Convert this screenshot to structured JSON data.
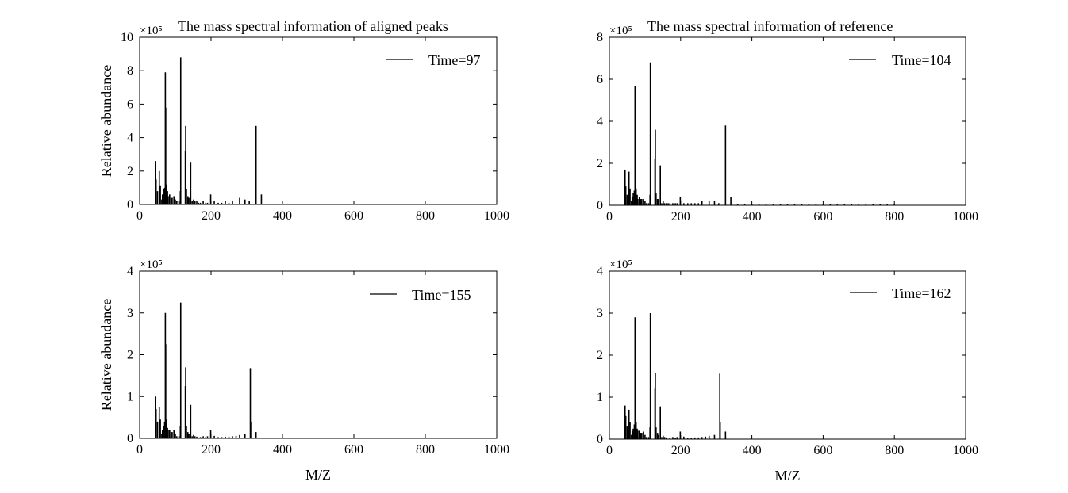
{
  "chart_data": [
    {
      "type": "bar",
      "title": "The mass spectral information of aligned peaks",
      "xlabel": "",
      "ylabel": "Relative abundance",
      "exponent_label": "×10⁵",
      "xlim": [
        0,
        1000
      ],
      "ylim": [
        0,
        10
      ],
      "xticks": [
        "0",
        "200",
        "400",
        "600",
        "800",
        "1000"
      ],
      "yticks": [
        "0",
        "2",
        "4",
        "6",
        "8",
        "10"
      ],
      "legend": "Time=97",
      "legend_position": "top-right",
      "x": [
        44,
        46,
        50,
        55,
        58,
        62,
        64,
        67,
        70,
        72,
        73,
        75,
        78,
        80,
        84,
        88,
        91,
        96,
        100,
        104,
        110,
        114,
        115,
        128,
        129,
        131,
        135,
        138,
        143,
        147,
        151,
        155,
        160,
        165,
        170,
        178,
        185,
        190,
        199,
        209,
        220,
        230,
        240,
        250,
        260,
        280,
        295,
        307,
        326,
        341
      ],
      "values": [
        2.6,
        1.5,
        0.8,
        2.0,
        1.1,
        0.3,
        0.6,
        0.9,
        1.0,
        7.9,
        5.8,
        1.2,
        0.8,
        0.5,
        0.6,
        0.4,
        0.4,
        0.5,
        0.3,
        0.2,
        0.2,
        0.8,
        8.8,
        3.2,
        4.7,
        0.9,
        0.5,
        0.4,
        2.5,
        0.2,
        0.3,
        0.2,
        0.2,
        0.1,
        0.1,
        0.2,
        0.1,
        0.1,
        0.6,
        0.2,
        0.1,
        0.1,
        0.2,
        0.1,
        0.2,
        0.4,
        0.3,
        0.2,
        4.7,
        0.6
      ]
    },
    {
      "type": "bar",
      "title": "The mass spectral information of reference",
      "xlabel": "",
      "ylabel": "",
      "exponent_label": "×10⁵",
      "xlim": [
        0,
        1000
      ],
      "ylim": [
        0,
        8
      ],
      "xticks": [
        "0",
        "200",
        "400",
        "600",
        "800",
        "1000"
      ],
      "yticks": [
        "0",
        "2",
        "4",
        "6",
        "8"
      ],
      "legend": "Time=104",
      "legend_position": "top-right",
      "x": [
        44,
        46,
        50,
        55,
        58,
        62,
        64,
        67,
        70,
        72,
        73,
        75,
        78,
        80,
        84,
        88,
        91,
        96,
        100,
        104,
        110,
        114,
        115,
        128,
        129,
        131,
        135,
        138,
        143,
        147,
        151,
        155,
        160,
        165,
        170,
        178,
        185,
        190,
        199,
        209,
        220,
        230,
        240,
        250,
        260,
        280,
        295,
        307,
        326,
        341,
        360,
        380,
        400,
        420,
        440,
        460,
        480,
        500,
        520,
        540,
        560,
        580,
        600,
        620,
        640,
        660,
        680,
        700,
        720,
        740,
        760,
        780,
        800
      ],
      "values": [
        1.7,
        0.9,
        0.5,
        1.6,
        0.8,
        0.2,
        0.4,
        0.6,
        0.7,
        5.7,
        4.3,
        0.8,
        0.5,
        0.3,
        0.4,
        0.3,
        0.3,
        0.3,
        0.2,
        0.1,
        0.1,
        0.5,
        6.8,
        2.2,
        3.6,
        0.6,
        0.3,
        0.3,
        1.9,
        0.1,
        0.2,
        0.1,
        0.1,
        0.1,
        0.1,
        0.1,
        0.1,
        0.1,
        0.4,
        0.1,
        0.1,
        0.1,
        0.1,
        0.1,
        0.2,
        0.2,
        0.2,
        0.1,
        3.8,
        0.4,
        0.05,
        0.04,
        0.05,
        0.04,
        0.04,
        0.05,
        0.04,
        0.04,
        0.05,
        0.04,
        0.04,
        0.04,
        0.05,
        0.04,
        0.04,
        0.04,
        0.04,
        0.04,
        0.04,
        0.04,
        0.04,
        0.04,
        0.04
      ]
    },
    {
      "type": "bar",
      "title": "",
      "xlabel": "M/Z",
      "ylabel": "Relative abundance",
      "exponent_label": "×10⁵",
      "xlim": [
        0,
        1000
      ],
      "ylim": [
        0,
        4
      ],
      "xticks": [
        "0",
        "200",
        "400",
        "600",
        "800",
        "1000"
      ],
      "yticks": [
        "0",
        "1",
        "2",
        "3",
        "4"
      ],
      "legend": "Time=155",
      "legend_position": "top-right",
      "x": [
        44,
        46,
        50,
        55,
        58,
        62,
        64,
        67,
        70,
        72,
        73,
        75,
        78,
        80,
        84,
        88,
        91,
        96,
        100,
        104,
        110,
        114,
        115,
        128,
        129,
        131,
        135,
        138,
        143,
        147,
        151,
        155,
        160,
        170,
        178,
        185,
        190,
        199,
        209,
        220,
        230,
        240,
        250,
        260,
        270,
        280,
        295,
        310,
        311,
        326
      ],
      "values": [
        1.0,
        0.7,
        0.4,
        0.75,
        0.45,
        0.1,
        0.2,
        0.3,
        0.4,
        3.0,
        2.25,
        0.45,
        0.25,
        0.2,
        0.2,
        0.15,
        0.15,
        0.2,
        0.1,
        0.05,
        0.05,
        0.3,
        3.25,
        1.25,
        1.7,
        0.3,
        0.15,
        0.1,
        0.8,
        0.05,
        0.08,
        0.05,
        0.04,
        0.03,
        0.05,
        0.03,
        0.05,
        0.2,
        0.06,
        0.03,
        0.03,
        0.04,
        0.04,
        0.05,
        0.06,
        0.08,
        0.1,
        1.68,
        0.4,
        0.15
      ]
    },
    {
      "type": "bar",
      "title": "",
      "xlabel": "M/Z",
      "ylabel": "",
      "exponent_label": "×10⁵",
      "xlim": [
        0,
        1000
      ],
      "ylim": [
        0,
        4
      ],
      "xticks": [
        "0",
        "200",
        "400",
        "600",
        "800",
        "1000"
      ],
      "yticks": [
        "0",
        "1",
        "2",
        "3",
        "4"
      ],
      "legend": "Time=162",
      "legend_position": "top-right",
      "x": [
        44,
        46,
        50,
        55,
        58,
        62,
        64,
        67,
        70,
        72,
        73,
        75,
        78,
        80,
        84,
        88,
        91,
        96,
        100,
        104,
        110,
        114,
        115,
        128,
        129,
        131,
        135,
        138,
        143,
        147,
        151,
        155,
        160,
        170,
        178,
        185,
        190,
        199,
        209,
        220,
        230,
        240,
        250,
        260,
        270,
        280,
        295,
        310,
        311,
        326
      ],
      "values": [
        0.8,
        0.55,
        0.3,
        0.7,
        0.4,
        0.1,
        0.2,
        0.25,
        0.35,
        2.9,
        2.15,
        0.4,
        0.25,
        0.2,
        0.2,
        0.15,
        0.15,
        0.18,
        0.1,
        0.05,
        0.05,
        0.28,
        3.0,
        1.2,
        1.58,
        0.28,
        0.15,
        0.1,
        0.78,
        0.05,
        0.08,
        0.05,
        0.04,
        0.03,
        0.05,
        0.03,
        0.05,
        0.18,
        0.06,
        0.03,
        0.03,
        0.04,
        0.04,
        0.05,
        0.06,
        0.08,
        0.1,
        1.56,
        0.4,
        0.18
      ]
    }
  ]
}
